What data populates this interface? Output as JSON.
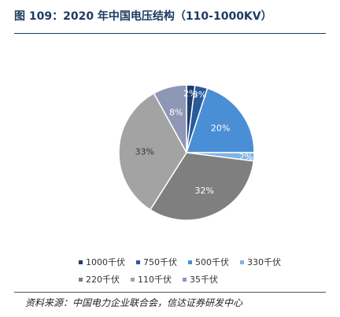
{
  "title": "图 109：2020 年中国电压结构（110-1000KV）",
  "source": "资料来源：中国电力企业联合会，信达证券研发中心",
  "chart_data": {
    "type": "pie",
    "categories": [
      "1000千伏",
      "750千伏",
      "500千伏",
      "330千伏",
      "220千伏",
      "110千伏",
      "35千伏"
    ],
    "values": [
      2,
      3,
      20,
      2,
      32,
      33,
      8
    ],
    "labels": [
      "2%",
      "3%",
      "20%",
      "2%",
      "32%",
      "33%",
      "8%"
    ],
    "colors": [
      "#1f3d6e",
      "#2a5a9a",
      "#4a8fd6",
      "#7fb4e6",
      "#7f7f7f",
      "#a3a3a3",
      "#8e97b6"
    ],
    "label_colors": [
      "#ffffff",
      "#ffffff",
      "#ffffff",
      "#ffffff",
      "#ffffff",
      "#333333",
      "#ffffff"
    ],
    "start_angle": 0,
    "direction": "clockwise",
    "legend_position": "bottom"
  }
}
